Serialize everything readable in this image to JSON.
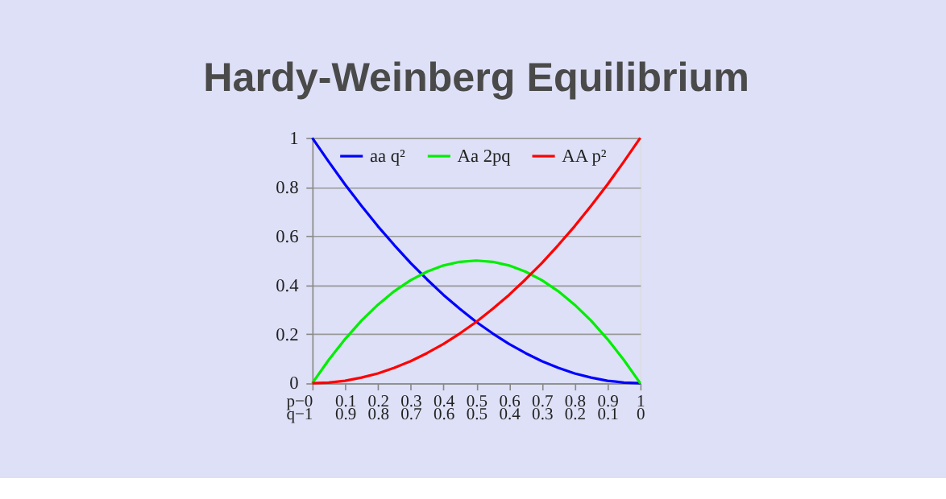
{
  "chart_data": {
    "type": "line",
    "title": "Hardy-Weinberg Equilibrium",
    "x": [
      0,
      0.05,
      0.1,
      0.15,
      0.2,
      0.25,
      0.3,
      0.35,
      0.4,
      0.45,
      0.5,
      0.55,
      0.6,
      0.65,
      0.7,
      0.75,
      0.8,
      0.85,
      0.9,
      0.95,
      1
    ],
    "series": [
      {
        "name": "aa q²",
        "color": "#0000ff",
        "values": [
          1,
          0.903,
          0.81,
          0.723,
          0.64,
          0.563,
          0.49,
          0.423,
          0.36,
          0.303,
          0.25,
          0.203,
          0.16,
          0.123,
          0.09,
          0.063,
          0.04,
          0.023,
          0.01,
          0.003,
          0
        ]
      },
      {
        "name": "Aa 2pq",
        "color": "#00ee00",
        "values": [
          0,
          0.095,
          0.18,
          0.255,
          0.32,
          0.375,
          0.42,
          0.455,
          0.48,
          0.495,
          0.5,
          0.495,
          0.48,
          0.455,
          0.42,
          0.375,
          0.32,
          0.255,
          0.18,
          0.095,
          0
        ]
      },
      {
        "name": "AA p²",
        "color": "#ff0000",
        "values": [
          0,
          0.003,
          0.01,
          0.023,
          0.04,
          0.063,
          0.09,
          0.123,
          0.16,
          0.203,
          0.25,
          0.303,
          0.36,
          0.423,
          0.49,
          0.563,
          0.64,
          0.723,
          0.81,
          0.903,
          1
        ]
      }
    ],
    "xlim": [
      0,
      1
    ],
    "xticks": [
      {
        "value": 0,
        "label": "p−0"
      },
      0.1,
      0.2,
      0.3,
      0.4,
      0.5,
      0.6,
      0.7,
      0.8,
      0.9,
      1
    ],
    "x2lim": [
      1,
      0
    ],
    "x2ticks": [
      {
        "value": 1,
        "label": "q−1"
      },
      0.9,
      0.8,
      0.7,
      0.6,
      0.5,
      0.4,
      0.3,
      0.2,
      0.1,
      0
    ],
    "ylim": [
      0,
      1
    ],
    "yticks": [
      0,
      0.2,
      0.4,
      0.6,
      0.8,
      1
    ],
    "grid": "y",
    "legend": "top",
    "marker": "none",
    "line_style": "solid"
  }
}
